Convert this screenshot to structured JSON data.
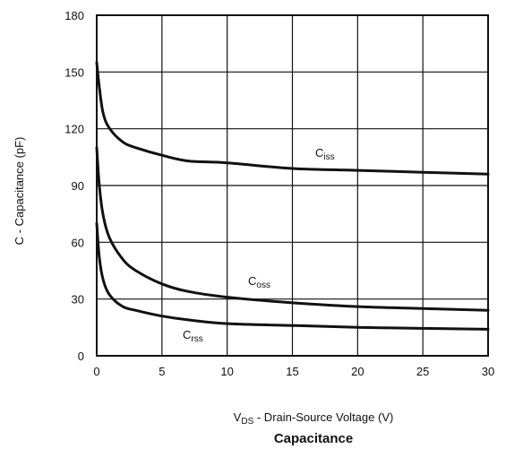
{
  "chart_data": {
    "type": "line",
    "title": "Capacitance",
    "xlabel": {
      "prefix": "V",
      "sub": "DS",
      "suffix": " - Drain-Source Voltage (V)"
    },
    "ylabel": "C - Capacitance (pF)",
    "xlim": [
      0,
      30
    ],
    "ylim": [
      0,
      180
    ],
    "xticks": [
      "0",
      "5",
      "10",
      "15",
      "20",
      "25",
      "30"
    ],
    "yticks": [
      "0",
      "30",
      "60",
      "90",
      "120",
      "150",
      "180"
    ],
    "grid": true,
    "series": [
      {
        "name": "Ciss",
        "label": {
          "main": "C",
          "sub": "iss"
        },
        "x": [
          0,
          0.2,
          0.5,
          1,
          2,
          3,
          5,
          7,
          10,
          15,
          20,
          25,
          30
        ],
        "y": [
          155,
          142,
          128,
          120,
          113,
          110,
          106,
          103,
          102,
          99,
          98,
          97,
          96
        ]
      },
      {
        "name": "Coss",
        "label": {
          "main": "C",
          "sub": "oss"
        },
        "x": [
          0,
          0.2,
          0.5,
          1,
          2,
          3,
          5,
          7,
          10,
          15,
          20,
          25,
          30
        ],
        "y": [
          110,
          90,
          74,
          62,
          51,
          45,
          38,
          34,
          31,
          28,
          26,
          25,
          24
        ]
      },
      {
        "name": "Crss",
        "label": {
          "main": "C",
          "sub": "rss"
        },
        "x": [
          0,
          0.2,
          0.5,
          1,
          2,
          3,
          5,
          7,
          10,
          15,
          20,
          25,
          30
        ],
        "y": [
          70,
          52,
          40,
          32,
          26,
          24,
          21,
          19,
          17,
          16,
          15,
          14.5,
          14
        ]
      }
    ]
  }
}
